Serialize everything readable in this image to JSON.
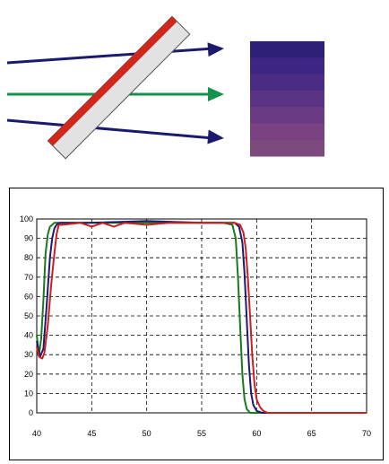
{
  "chart_data": {
    "type": "line",
    "title": "",
    "xlabel": "",
    "ylabel": "",
    "xlim": [
      400,
      700
    ],
    "ylim": [
      0,
      100
    ],
    "x_ticks": [
      "40",
      "45",
      "50",
      "55",
      "60",
      "65",
      "70"
    ],
    "y_ticks": [
      "0",
      "10",
      "20",
      "30",
      "40",
      "50",
      "60",
      "70",
      "80",
      "90",
      "100"
    ],
    "grid": true,
    "legend": "none",
    "series": [
      {
        "color": "#1a7a1a",
        "points": [
          [
            400,
            40
          ],
          [
            402,
            30
          ],
          [
            404,
            38
          ],
          [
            406,
            58
          ],
          [
            408,
            82
          ],
          [
            410,
            92
          ],
          [
            412,
            96
          ],
          [
            414,
            97
          ],
          [
            416,
            98
          ],
          [
            418,
            98
          ],
          [
            430,
            98
          ],
          [
            450,
            98
          ],
          [
            500,
            98
          ],
          [
            550,
            98
          ],
          [
            570,
            98
          ],
          [
            578,
            97
          ],
          [
            581,
            90
          ],
          [
            583,
            70
          ],
          [
            585,
            45
          ],
          [
            587,
            20
          ],
          [
            589,
            7
          ],
          [
            591,
            2
          ],
          [
            594,
            0
          ],
          [
            620,
            0
          ],
          [
            700,
            0
          ]
        ]
      },
      {
        "color": "#1c1a6e",
        "points": [
          [
            400,
            37
          ],
          [
            403,
            29
          ],
          [
            406,
            33
          ],
          [
            409,
            55
          ],
          [
            412,
            80
          ],
          [
            414,
            90
          ],
          [
            416,
            95
          ],
          [
            418,
            97
          ],
          [
            421,
            98
          ],
          [
            450,
            98
          ],
          [
            500,
            99
          ],
          [
            550,
            98
          ],
          [
            580,
            98
          ],
          [
            584,
            96
          ],
          [
            587,
            88
          ],
          [
            589,
            72
          ],
          [
            591,
            48
          ],
          [
            593,
            25
          ],
          [
            595,
            10
          ],
          [
            597,
            4
          ],
          [
            600,
            1
          ],
          [
            605,
            0
          ],
          [
            700,
            0
          ]
        ]
      },
      {
        "color": "#cc2020",
        "points": [
          [
            400,
            34
          ],
          [
            402,
            29
          ],
          [
            405,
            28
          ],
          [
            407,
            31
          ],
          [
            410,
            45
          ],
          [
            413,
            65
          ],
          [
            416,
            82
          ],
          [
            418,
            92
          ],
          [
            420,
            97
          ],
          [
            423,
            97
          ],
          [
            440,
            98
          ],
          [
            450,
            96
          ],
          [
            460,
            98
          ],
          [
            470,
            96
          ],
          [
            480,
            98
          ],
          [
            500,
            97
          ],
          [
            520,
            98
          ],
          [
            540,
            98
          ],
          [
            560,
            98
          ],
          [
            580,
            98
          ],
          [
            585,
            97
          ],
          [
            588,
            93
          ],
          [
            590,
            85
          ],
          [
            592,
            70
          ],
          [
            594,
            50
          ],
          [
            596,
            30
          ],
          [
            598,
            15
          ],
          [
            600,
            7
          ],
          [
            603,
            3
          ],
          [
            606,
            1
          ],
          [
            610,
            0
          ],
          [
            700,
            0
          ]
        ]
      }
    ]
  },
  "illustration": {
    "filter_face_color": "#d0261c",
    "filter_body_color": "#e2e2e2",
    "arrow_colors": [
      "#1c1a6e",
      "#12924a",
      "#1c1a6e"
    ],
    "swatch_bands": [
      "#2e1f76",
      "#3d2681",
      "#4a2d83",
      "#5a3384",
      "#6a3b84",
      "#7a4282",
      "#7d4a7e"
    ]
  }
}
